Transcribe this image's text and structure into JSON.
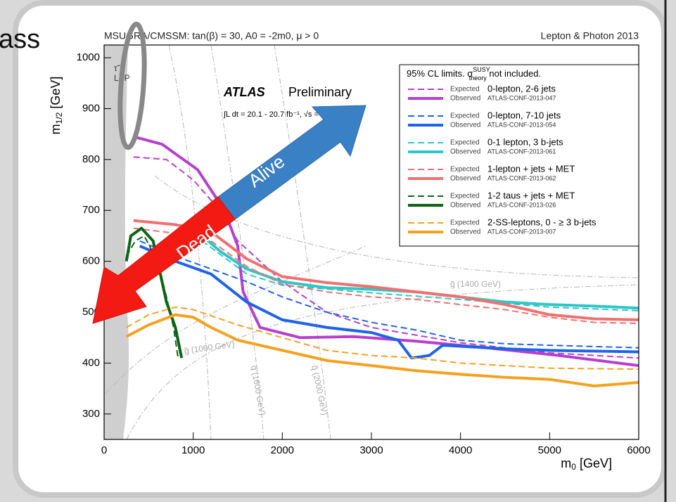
{
  "slide_text": "ass",
  "arrow": {
    "up": "Alive",
    "down": "Dead"
  },
  "chart_data": {
    "type": "line",
    "title": "MSUGRA/CMSSM: tan(β) = 30, A0 = -2m0, μ > 0",
    "subtitle": "Lepton & Photon 2013",
    "experiment": "ATLAS",
    "status": "Preliminary",
    "luminosity": "∫L dt = 20.1 - 20.7 fb⁻¹, √s = 8 TeV",
    "x_label": {
      "main": "m",
      "sub": "0",
      "unit": " [GeV]"
    },
    "y_label": {
      "main": "m",
      "sub": "1/2",
      "unit": " [GeV]"
    },
    "legend_title": {
      "main": "95% CL limits. σ",
      "sup": "SUSY",
      "sub": "theory",
      "rest": " not included."
    },
    "annotations": [
      "τ̃",
      "LSP",
      "g̃ (1400 GeV)",
      "g̃ (1000 GeV)",
      "q̃ (1600 GeV)",
      "q̃ (2000 GeV)"
    ],
    "xlim": [
      0,
      6000
    ],
    "xticks": [
      0,
      1000,
      2000,
      3000,
      4000,
      5000,
      6000
    ],
    "ylim": [
      250,
      1025
    ],
    "yticks": [
      300,
      400,
      500,
      600,
      700,
      800,
      900,
      1000
    ],
    "groups": [
      {
        "label": "0-lepton, 2-6 jets",
        "ref": "ATLAS-CONF-2013-047",
        "color": "#b63fd0",
        "series": [
          {
            "name": "Expected",
            "style": "dashed",
            "x": [
              330,
              700,
              1000,
              1300,
              1500,
              2000,
              2500,
              3000,
              3500,
              4000,
              5000,
              6000
            ],
            "values": [
              805,
              800,
              760,
              700,
              640,
              560,
              500,
              470,
              455,
              440,
              420,
              410
            ]
          },
          {
            "name": "Observed",
            "style": "solid",
            "x": [
              330,
              650,
              1050,
              1350,
              1500,
              1560,
              1750,
              2200,
              2800,
              3500,
              4300,
              5100,
              6000
            ],
            "values": [
              845,
              830,
              780,
              700,
              630,
              540,
              470,
              450,
              452,
              443,
              430,
              415,
              395
            ]
          }
        ]
      },
      {
        "label": "0-lepton, 7-10 jets",
        "ref": "ATLAS-CONF-2013-054",
        "color": "#1f63e6",
        "series": [
          {
            "name": "Expected",
            "style": "dashed",
            "x": [
              400,
              800,
              1200,
              1600,
              2000,
              2500,
              3000,
              3500,
              4000,
              4500,
              5000,
              6000
            ],
            "values": [
              640,
              610,
              585,
              560,
              530,
              500,
              480,
              465,
              445,
              438,
              435,
              430
            ]
          },
          {
            "name": "Observed",
            "style": "solid",
            "x": [
              400,
              800,
              1200,
              1600,
              2000,
              2500,
              3000,
              3300,
              3450,
              3650,
              3800,
              4500,
              5000,
              6000
            ],
            "values": [
              630,
              600,
              575,
              520,
              485,
              470,
              460,
              445,
              410,
              415,
              435,
              428,
              425,
              422
            ]
          }
        ]
      },
      {
        "label": "0-1 lepton, 3 b-jets",
        "ref": "ATLAS-CONF-2013-061",
        "color": "#2ec6c6",
        "series": [
          {
            "name": "Expected",
            "style": "dashed",
            "x": [
              1100,
              1600,
              2000,
              3000,
              4000,
              5000,
              6000
            ],
            "values": [
              640,
              575,
              553,
              538,
              525,
              510,
              503
            ]
          },
          {
            "name": "Observed",
            "style": "solid",
            "x": [
              1100,
              1300,
              1600,
              2000,
              2500,
              3000,
              3500,
              4000,
              4500,
              5000,
              5500,
              6000
            ],
            "values": [
              650,
              620,
              585,
              560,
              548,
              545,
              540,
              530,
              520,
              515,
              512,
              508
            ]
          }
        ]
      },
      {
        "label": "1-lepton + jets + MET",
        "ref": "ATLAS-CONF-2013-062",
        "color": "#f07070",
        "series": [
          {
            "name": "Expected",
            "style": "dashed",
            "x": [
              330,
              800,
              1200,
              1600,
              2000,
              2500,
              3000,
              3500,
              4000,
              4500,
              5000,
              5500,
              6000
            ],
            "values": [
              665,
              655,
              640,
              590,
              555,
              540,
              530,
              525,
              515,
              505,
              490,
              480,
              478
            ]
          },
          {
            "name": "Observed",
            "style": "solid",
            "x": [
              330,
              800,
              1200,
              1600,
              2000,
              2500,
              3000,
              3500,
              4000,
              4500,
              5000,
              5500,
              6000
            ],
            "values": [
              680,
              672,
              658,
              605,
              570,
              558,
              550,
              540,
              530,
              515,
              495,
              487,
              485
            ]
          }
        ]
      },
      {
        "label": "1-2 taus + jets + MET",
        "ref": "ATLAS-CONF-2013-026",
        "color": "#0b6416",
        "series": [
          {
            "name": "Expected",
            "style": "dashed",
            "x": [
              250,
              350,
              450,
              600,
              700,
              780,
              830
            ],
            "values": [
              610,
              640,
              650,
              600,
              530,
              470,
              410
            ]
          },
          {
            "name": "Observed",
            "style": "solid",
            "x": [
              250,
              300,
              420,
              550,
              650,
              700,
              800,
              870
            ],
            "values": [
              600,
              650,
              665,
              640,
              560,
              520,
              470,
              410
            ]
          }
        ]
      },
      {
        "label": "2-SS-leptons, 0 - ≥ 3 b-jets",
        "ref": "ATLAS-CONF-2013-007",
        "color": "#f5a11f",
        "series": [
          {
            "name": "Expected",
            "style": "dashed",
            "x": [
              250,
              500,
              800,
              1000,
              1500,
              2000,
              2500,
              3000,
              3500,
              4000,
              5000,
              6000
            ],
            "values": [
              470,
              495,
              510,
              505,
              475,
              450,
              425,
              415,
              410,
              400,
              390,
              388
            ]
          },
          {
            "name": "Observed",
            "style": "solid",
            "x": [
              250,
              500,
              800,
              1000,
              1200,
              1500,
              2000,
              2500,
              3000,
              3500,
              4000,
              4500,
              5000,
              5500,
              6000
            ],
            "values": [
              452,
              475,
              495,
              490,
              470,
              445,
              425,
              405,
              395,
              385,
              378,
              372,
              368,
              355,
              362
            ]
          }
        ]
      }
    ]
  }
}
